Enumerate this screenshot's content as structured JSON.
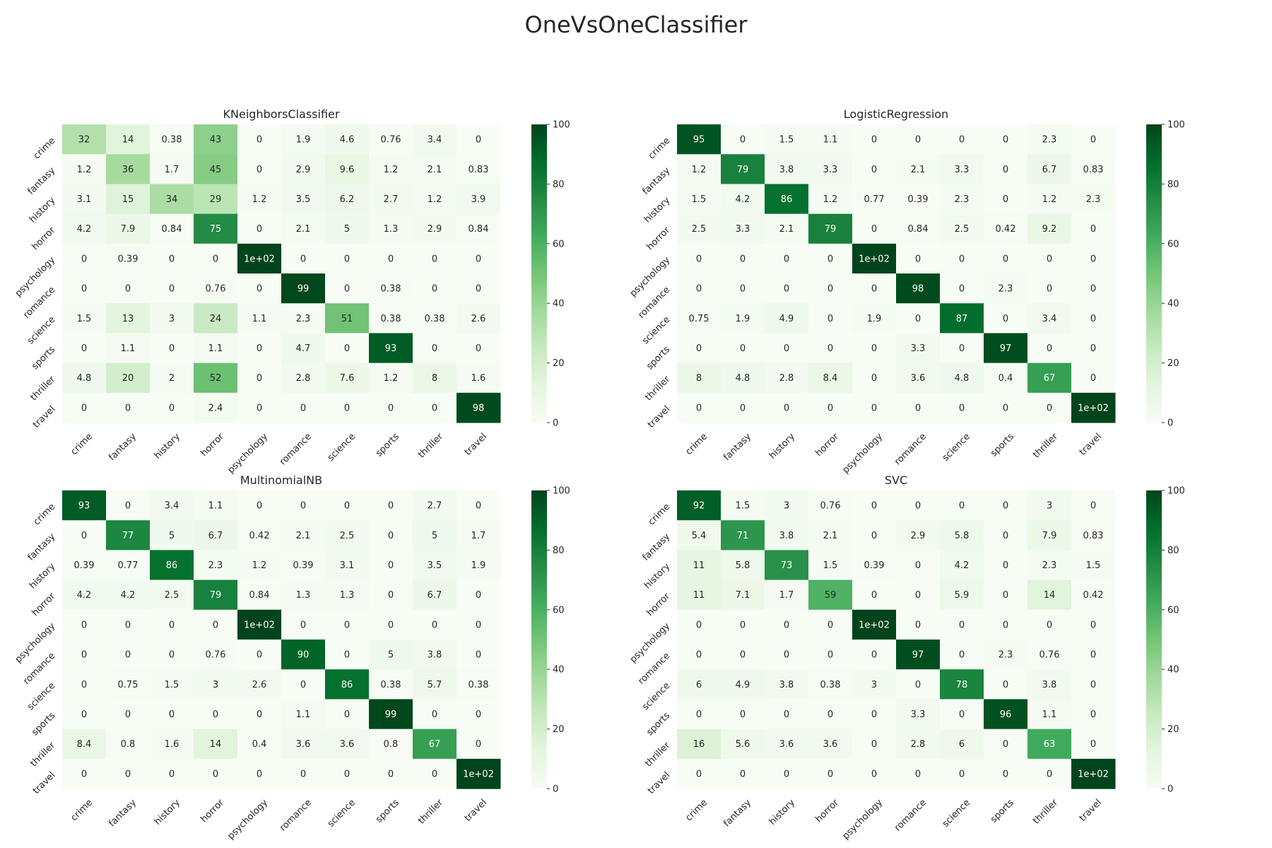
{
  "title": "OneVsOneClassifier",
  "chart_data": [
    {
      "type": "heatmap",
      "title": "KNeighborsClassifier",
      "x": [
        "crime",
        "fantasy",
        "history",
        "horror",
        "psychology",
        "romance",
        "science",
        "sports",
        "thriller",
        "travel"
      ],
      "y": [
        "crime",
        "fantasy",
        "history",
        "horror",
        "psychology",
        "romance",
        "science",
        "sports",
        "thriller",
        "travel"
      ],
      "values": [
        [
          32,
          14,
          0.38,
          43,
          0,
          1.9,
          4.6,
          0.76,
          3.4,
          0
        ],
        [
          1.2,
          36,
          1.7,
          45,
          0,
          2.9,
          9.6,
          1.2,
          2.1,
          0.83
        ],
        [
          3.1,
          15,
          34,
          29,
          1.2,
          3.5,
          6.2,
          2.7,
          1.2,
          3.9
        ],
        [
          4.2,
          7.9,
          0.84,
          75,
          0,
          2.1,
          5,
          1.3,
          2.9,
          0.84
        ],
        [
          0,
          0.39,
          0,
          0,
          100,
          0,
          0,
          0,
          0,
          0
        ],
        [
          0,
          0,
          0,
          0.76,
          0,
          99,
          0,
          0.38,
          0,
          0
        ],
        [
          1.5,
          13,
          3,
          24,
          1.1,
          2.3,
          51,
          0.38,
          0.38,
          2.6
        ],
        [
          0,
          1.1,
          0,
          1.1,
          0,
          4.7,
          0,
          93,
          0,
          0
        ],
        [
          4.8,
          20,
          2,
          52,
          0,
          2.8,
          7.6,
          1.2,
          8,
          1.6
        ],
        [
          0,
          0,
          0,
          2.4,
          0,
          0,
          0,
          0,
          0,
          98
        ]
      ],
      "labels": [
        [
          "32",
          "14",
          "0.38",
          "43",
          "0",
          "1.9",
          "4.6",
          "0.76",
          "3.4",
          "0"
        ],
        [
          "1.2",
          "36",
          "1.7",
          "45",
          "0",
          "2.9",
          "9.6",
          "1.2",
          "2.1",
          "0.83"
        ],
        [
          "3.1",
          "15",
          "34",
          "29",
          "1.2",
          "3.5",
          "6.2",
          "2.7",
          "1.2",
          "3.9"
        ],
        [
          "4.2",
          "7.9",
          "0.84",
          "75",
          "0",
          "2.1",
          "5",
          "1.3",
          "2.9",
          "0.84"
        ],
        [
          "0",
          "0.39",
          "0",
          "0",
          "1e+02",
          "0",
          "0",
          "0",
          "0",
          "0"
        ],
        [
          "0",
          "0",
          "0",
          "0.76",
          "0",
          "99",
          "0",
          "0.38",
          "0",
          "0"
        ],
        [
          "1.5",
          "13",
          "3",
          "24",
          "1.1",
          "2.3",
          "51",
          "0.38",
          "0.38",
          "2.6"
        ],
        [
          "0",
          "1.1",
          "0",
          "1.1",
          "0",
          "4.7",
          "0",
          "93",
          "0",
          "0"
        ],
        [
          "4.8",
          "20",
          "2",
          "52",
          "0",
          "2.8",
          "7.6",
          "1.2",
          "8",
          "1.6"
        ],
        [
          "0",
          "0",
          "0",
          "2.4",
          "0",
          "0",
          "0",
          "0",
          "0",
          "98"
        ]
      ],
      "colorbar": {
        "range": [
          0,
          100
        ],
        "ticks": [
          "0",
          "20",
          "40",
          "60",
          "80",
          "100"
        ]
      }
    },
    {
      "type": "heatmap",
      "title": "LogisticRegression",
      "x": [
        "crime",
        "fantasy",
        "history",
        "horror",
        "psychology",
        "romance",
        "science",
        "sports",
        "thriller",
        "travel"
      ],
      "y": [
        "crime",
        "fantasy",
        "history",
        "horror",
        "psychology",
        "romance",
        "science",
        "sports",
        "thriller",
        "travel"
      ],
      "values": [
        [
          95,
          0,
          1.5,
          1.1,
          0,
          0,
          0,
          0,
          2.3,
          0
        ],
        [
          1.2,
          79,
          3.8,
          3.3,
          0,
          2.1,
          3.3,
          0,
          6.7,
          0.83
        ],
        [
          1.5,
          4.2,
          86,
          1.2,
          0.77,
          0.39,
          2.3,
          0,
          1.2,
          2.3
        ],
        [
          2.5,
          3.3,
          2.1,
          79,
          0,
          0.84,
          2.5,
          0.42,
          9.2,
          0
        ],
        [
          0,
          0,
          0,
          0,
          100,
          0,
          0,
          0,
          0,
          0
        ],
        [
          0,
          0,
          0,
          0,
          0,
          98,
          0,
          2.3,
          0,
          0
        ],
        [
          0.75,
          1.9,
          4.9,
          0,
          1.9,
          0,
          87,
          0,
          3.4,
          0
        ],
        [
          0,
          0,
          0,
          0,
          0,
          3.3,
          0,
          97,
          0,
          0
        ],
        [
          8,
          4.8,
          2.8,
          8.4,
          0,
          3.6,
          4.8,
          0.4,
          67,
          0
        ],
        [
          0,
          0,
          0,
          0,
          0,
          0,
          0,
          0,
          0,
          100
        ]
      ],
      "labels": [
        [
          "95",
          "0",
          "1.5",
          "1.1",
          "0",
          "0",
          "0",
          "0",
          "2.3",
          "0"
        ],
        [
          "1.2",
          "79",
          "3.8",
          "3.3",
          "0",
          "2.1",
          "3.3",
          "0",
          "6.7",
          "0.83"
        ],
        [
          "1.5",
          "4.2",
          "86",
          "1.2",
          "0.77",
          "0.39",
          "2.3",
          "0",
          "1.2",
          "2.3"
        ],
        [
          "2.5",
          "3.3",
          "2.1",
          "79",
          "0",
          "0.84",
          "2.5",
          "0.42",
          "9.2",
          "0"
        ],
        [
          "0",
          "0",
          "0",
          "0",
          "1e+02",
          "0",
          "0",
          "0",
          "0",
          "0"
        ],
        [
          "0",
          "0",
          "0",
          "0",
          "0",
          "98",
          "0",
          "2.3",
          "0",
          "0"
        ],
        [
          "0.75",
          "1.9",
          "4.9",
          "0",
          "1.9",
          "0",
          "87",
          "0",
          "3.4",
          "0"
        ],
        [
          "0",
          "0",
          "0",
          "0",
          "0",
          "3.3",
          "0",
          "97",
          "0",
          "0"
        ],
        [
          "8",
          "4.8",
          "2.8",
          "8.4",
          "0",
          "3.6",
          "4.8",
          "0.4",
          "67",
          "0"
        ],
        [
          "0",
          "0",
          "0",
          "0",
          "0",
          "0",
          "0",
          "0",
          "0",
          "1e+02"
        ]
      ],
      "colorbar": {
        "range": [
          0,
          100
        ],
        "ticks": [
          "0",
          "20",
          "40",
          "60",
          "80",
          "100"
        ]
      }
    },
    {
      "type": "heatmap",
      "title": "MultinomialNB",
      "x": [
        "crime",
        "fantasy",
        "history",
        "horror",
        "psychology",
        "romance",
        "science",
        "sports",
        "thriller",
        "travel"
      ],
      "y": [
        "crime",
        "fantasy",
        "history",
        "horror",
        "psychology",
        "romance",
        "science",
        "sports",
        "thriller",
        "travel"
      ],
      "values": [
        [
          93,
          0,
          3.4,
          1.1,
          0,
          0,
          0,
          0,
          2.7,
          0
        ],
        [
          0,
          77,
          5,
          6.7,
          0.42,
          2.1,
          2.5,
          0,
          5,
          1.7
        ],
        [
          0.39,
          0.77,
          86,
          2.3,
          1.2,
          0.39,
          3.1,
          0,
          3.5,
          1.9
        ],
        [
          4.2,
          4.2,
          2.5,
          79,
          0.84,
          1.3,
          1.3,
          0,
          6.7,
          0
        ],
        [
          0,
          0,
          0,
          0,
          100,
          0,
          0,
          0,
          0,
          0
        ],
        [
          0,
          0,
          0,
          0.76,
          0,
          90,
          0,
          5,
          3.8,
          0
        ],
        [
          0,
          0.75,
          1.5,
          3,
          2.6,
          0,
          86,
          0.38,
          5.7,
          0.38
        ],
        [
          0,
          0,
          0,
          0,
          0,
          1.1,
          0,
          99,
          0,
          0
        ],
        [
          8.4,
          0.8,
          1.6,
          14,
          0.4,
          3.6,
          3.6,
          0.8,
          67,
          0
        ],
        [
          0,
          0,
          0,
          0,
          0,
          0,
          0,
          0,
          0,
          100
        ]
      ],
      "labels": [
        [
          "93",
          "0",
          "3.4",
          "1.1",
          "0",
          "0",
          "0",
          "0",
          "2.7",
          "0"
        ],
        [
          "0",
          "77",
          "5",
          "6.7",
          "0.42",
          "2.1",
          "2.5",
          "0",
          "5",
          "1.7"
        ],
        [
          "0.39",
          "0.77",
          "86",
          "2.3",
          "1.2",
          "0.39",
          "3.1",
          "0",
          "3.5",
          "1.9"
        ],
        [
          "4.2",
          "4.2",
          "2.5",
          "79",
          "0.84",
          "1.3",
          "1.3",
          "0",
          "6.7",
          "0"
        ],
        [
          "0",
          "0",
          "0",
          "0",
          "1e+02",
          "0",
          "0",
          "0",
          "0",
          "0"
        ],
        [
          "0",
          "0",
          "0",
          "0.76",
          "0",
          "90",
          "0",
          "5",
          "3.8",
          "0"
        ],
        [
          "0",
          "0.75",
          "1.5",
          "3",
          "2.6",
          "0",
          "86",
          "0.38",
          "5.7",
          "0.38"
        ],
        [
          "0",
          "0",
          "0",
          "0",
          "0",
          "1.1",
          "0",
          "99",
          "0",
          "0"
        ],
        [
          "8.4",
          "0.8",
          "1.6",
          "14",
          "0.4",
          "3.6",
          "3.6",
          "0.8",
          "67",
          "0"
        ],
        [
          "0",
          "0",
          "0",
          "0",
          "0",
          "0",
          "0",
          "0",
          "0",
          "1e+02"
        ]
      ],
      "colorbar": {
        "range": [
          0,
          100
        ],
        "ticks": [
          "0",
          "20",
          "40",
          "60",
          "80",
          "100"
        ]
      }
    },
    {
      "type": "heatmap",
      "title": "SVC",
      "x": [
        "crime",
        "fantasy",
        "history",
        "horror",
        "psychology",
        "romance",
        "science",
        "sports",
        "thriller",
        "travel"
      ],
      "y": [
        "crime",
        "fantasy",
        "history",
        "horror",
        "psychology",
        "romance",
        "science",
        "sports",
        "thriller",
        "travel"
      ],
      "values": [
        [
          92,
          1.5,
          3,
          0.76,
          0,
          0,
          0,
          0,
          3,
          0
        ],
        [
          5.4,
          71,
          3.8,
          2.1,
          0,
          2.9,
          5.8,
          0,
          7.9,
          0.83
        ],
        [
          11,
          5.8,
          73,
          1.5,
          0.39,
          0,
          4.2,
          0,
          2.3,
          1.5
        ],
        [
          11,
          7.1,
          1.7,
          59,
          0,
          0,
          5.9,
          0,
          14,
          0.42
        ],
        [
          0,
          0,
          0,
          0,
          100,
          0,
          0,
          0,
          0,
          0
        ],
        [
          0,
          0,
          0,
          0,
          0,
          97,
          0,
          2.3,
          0.76,
          0
        ],
        [
          6,
          4.9,
          3.8,
          0.38,
          3,
          0,
          78,
          0,
          3.8,
          0
        ],
        [
          0,
          0,
          0,
          0,
          0,
          3.3,
          0,
          96,
          1.1,
          0
        ],
        [
          16,
          5.6,
          3.6,
          3.6,
          0,
          2.8,
          6,
          0,
          63,
          0
        ],
        [
          0,
          0,
          0,
          0,
          0,
          0,
          0,
          0,
          0,
          100
        ]
      ],
      "labels": [
        [
          "92",
          "1.5",
          "3",
          "0.76",
          "0",
          "0",
          "0",
          "0",
          "3",
          "0"
        ],
        [
          "5.4",
          "71",
          "3.8",
          "2.1",
          "0",
          "2.9",
          "5.8",
          "0",
          "7.9",
          "0.83"
        ],
        [
          "11",
          "5.8",
          "73",
          "1.5",
          "0.39",
          "0",
          "4.2",
          "0",
          "2.3",
          "1.5"
        ],
        [
          "11",
          "7.1",
          "1.7",
          "59",
          "0",
          "0",
          "5.9",
          "0",
          "14",
          "0.42"
        ],
        [
          "0",
          "0",
          "0",
          "0",
          "1e+02",
          "0",
          "0",
          "0",
          "0",
          "0"
        ],
        [
          "0",
          "0",
          "0",
          "0",
          "0",
          "97",
          "0",
          "2.3",
          "0.76",
          "0"
        ],
        [
          "6",
          "4.9",
          "3.8",
          "0.38",
          "3",
          "0",
          "78",
          "0",
          "3.8",
          "0"
        ],
        [
          "0",
          "0",
          "0",
          "0",
          "0",
          "3.3",
          "0",
          "96",
          "1.1",
          "0"
        ],
        [
          "16",
          "5.6",
          "3.6",
          "3.6",
          "0",
          "2.8",
          "6",
          "0",
          "63",
          "0"
        ],
        [
          "0",
          "0",
          "0",
          "0",
          "0",
          "0",
          "0",
          "0",
          "0",
          "1e+02"
        ]
      ],
      "colorbar": {
        "range": [
          0,
          100
        ],
        "ticks": [
          "0",
          "20",
          "40",
          "60",
          "80",
          "100"
        ]
      }
    }
  ]
}
